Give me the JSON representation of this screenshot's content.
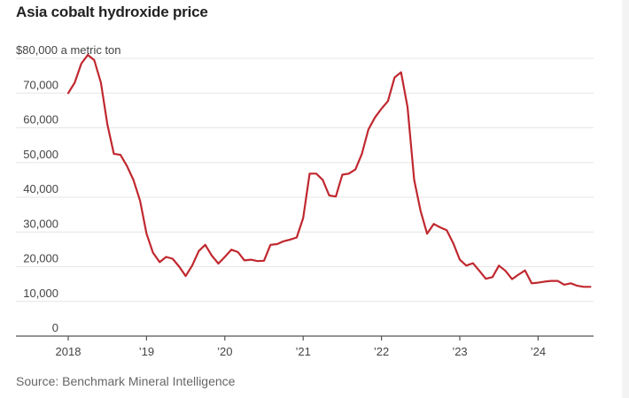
{
  "header": {
    "title": "Asia cobalt hydroxide price"
  },
  "footer": {
    "source": "Source: Benchmark Mineral Intelligence"
  },
  "colors": {
    "line": "#c0282f",
    "grid": "#e6e6e6",
    "axis": "#555555",
    "text": "#444444"
  },
  "chart_data": {
    "type": "line",
    "title": "Asia cobalt hydroxide price",
    "xlabel": "",
    "ylabel": "$ a metric ton",
    "ylim": [
      0,
      80000
    ],
    "xlim": [
      2017.6,
      2024.75
    ],
    "grid": true,
    "y_ticks": [
      {
        "value": 80000,
        "label": "$80,000 a metric ton"
      },
      {
        "value": 70000,
        "label": "70,000"
      },
      {
        "value": 60000,
        "label": "60,000"
      },
      {
        "value": 50000,
        "label": "50,000"
      },
      {
        "value": 40000,
        "label": "40,000"
      },
      {
        "value": 30000,
        "label": "30,000"
      },
      {
        "value": 20000,
        "label": "20,000"
      },
      {
        "value": 10000,
        "label": "10,000"
      },
      {
        "value": 0,
        "label": "0"
      }
    ],
    "x_ticks": [
      {
        "value": 2018,
        "label": "2018"
      },
      {
        "value": 2019,
        "label": "’19"
      },
      {
        "value": 2020,
        "label": "’20"
      },
      {
        "value": 2021,
        "label": "’21"
      },
      {
        "value": 2022,
        "label": "’22"
      },
      {
        "value": 2023,
        "label": "’23"
      },
      {
        "value": 2024,
        "label": "’24"
      }
    ],
    "series": [
      {
        "name": "Asia cobalt hydroxide price",
        "x": [
          2018.0,
          2018.083,
          2018.167,
          2018.25,
          2018.333,
          2018.417,
          2018.5,
          2018.583,
          2018.667,
          2018.75,
          2018.833,
          2018.917,
          2019.0,
          2019.083,
          2019.167,
          2019.25,
          2019.333,
          2019.417,
          2019.5,
          2019.583,
          2019.667,
          2019.75,
          2019.833,
          2019.917,
          2020.0,
          2020.083,
          2020.167,
          2020.25,
          2020.333,
          2020.417,
          2020.5,
          2020.583,
          2020.667,
          2020.75,
          2020.833,
          2020.917,
          2021.0,
          2021.083,
          2021.167,
          2021.25,
          2021.333,
          2021.417,
          2021.5,
          2021.583,
          2021.667,
          2021.75,
          2021.833,
          2021.917,
          2022.0,
          2022.083,
          2022.167,
          2022.25,
          2022.333,
          2022.417,
          2022.5,
          2022.583,
          2022.667,
          2022.75,
          2022.833,
          2022.917,
          2023.0,
          2023.083,
          2023.167,
          2023.25,
          2023.333,
          2023.417,
          2023.5,
          2023.583,
          2023.667,
          2023.75,
          2023.833,
          2023.917,
          2024.0,
          2024.083,
          2024.167,
          2024.25,
          2024.333,
          2024.417,
          2024.5,
          2024.583,
          2024.667
        ],
        "values": [
          70000,
          73000,
          78500,
          81000,
          79500,
          73000,
          61000,
          52500,
          52200,
          49000,
          45000,
          39000,
          29500,
          24000,
          21300,
          22800,
          22300,
          20000,
          17300,
          20300,
          24500,
          26300,
          23200,
          20900,
          22800,
          24900,
          24200,
          21800,
          22000,
          21600,
          21700,
          26300,
          26500,
          27300,
          27800,
          28400,
          34000,
          46800,
          46800,
          45000,
          40500,
          40200,
          46500,
          46800,
          48000,
          52500,
          59500,
          63000,
          65500,
          67700,
          74500,
          76000,
          66000,
          45000,
          36000,
          29500,
          32300,
          31300,
          30500,
          26700,
          22000,
          20300,
          21000,
          18800,
          16500,
          17000,
          20300,
          18800,
          16400,
          17700,
          18900,
          15200,
          15400,
          15700,
          15900,
          15900,
          14800,
          15200,
          14500,
          14200,
          14200
        ]
      }
    ]
  }
}
